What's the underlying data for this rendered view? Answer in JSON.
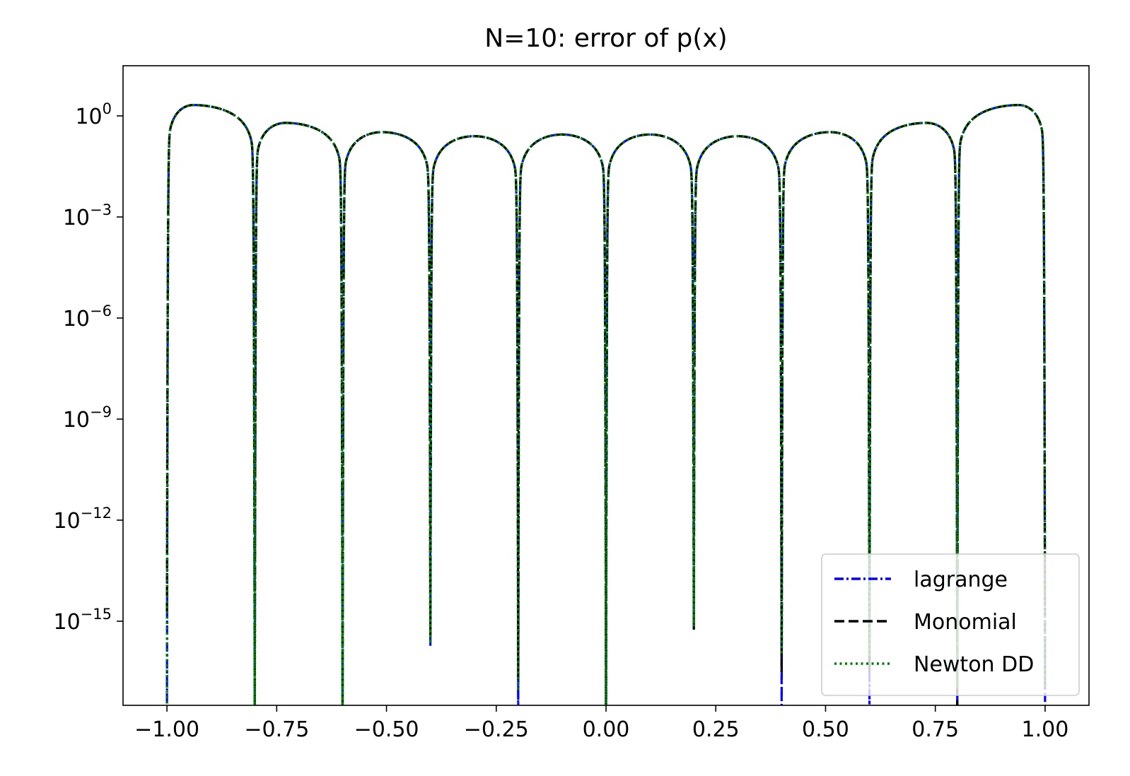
{
  "chart_data": {
    "type": "line",
    "title": "N=10: error of p(x)",
    "xlabel": "",
    "ylabel": "",
    "xlim": [
      -1.1,
      1.1
    ],
    "ylim": [
      1e-18,
      30
    ],
    "yscale": "log",
    "grid": false,
    "legend_position": "bottom-right",
    "x_ticks": [
      -1.0,
      -0.75,
      -0.5,
      -0.25,
      0.0,
      0.25,
      0.5,
      0.75,
      1.0
    ],
    "x_tick_labels": [
      "−1.00",
      "−0.75",
      "−0.50",
      "−0.25",
      "0.00",
      "0.25",
      "0.50",
      "0.75",
      "1.00"
    ],
    "y_ticks": [
      {
        "value": 1,
        "base": "10",
        "exp": "0"
      },
      {
        "value": 0.001,
        "base": "10",
        "exp": "−3"
      },
      {
        "value": 1e-06,
        "base": "10",
        "exp": "−6"
      },
      {
        "value": 1e-09,
        "base": "10",
        "exp": "−9"
      },
      {
        "value": 1e-12,
        "base": "10",
        "exp": "−12"
      },
      {
        "value": 1e-15,
        "base": "10",
        "exp": "−15"
      }
    ],
    "zeros": [
      -1.0,
      -0.8,
      -0.6,
      -0.4,
      -0.2,
      0.0,
      0.2,
      0.4,
      0.6,
      0.8,
      1.0
    ],
    "lobe_peaks": [
      {
        "x": -0.94,
        "y": 2.1
      },
      {
        "x": -0.73,
        "y": 0.62
      },
      {
        "x": -0.51,
        "y": 0.33
      },
      {
        "x": -0.3,
        "y": 0.25
      },
      {
        "x": -0.1,
        "y": 0.28
      },
      {
        "x": 0.1,
        "y": 0.28
      },
      {
        "x": 0.3,
        "y": 0.25
      },
      {
        "x": 0.51,
        "y": 0.33
      },
      {
        "x": 0.73,
        "y": 0.62
      },
      {
        "x": 0.94,
        "y": 2.1
      }
    ],
    "series": [
      {
        "name": "lagrange",
        "color": "#0000ff",
        "style": "dash-dot",
        "dip_min": [
          1e-18,
          1e-18,
          1e-18,
          2e-16,
          1e-18,
          1e-18,
          6e-16,
          1e-18,
          1e-18,
          1e-18,
          1e-18
        ]
      },
      {
        "name": "Monomial",
        "color": "#000000",
        "style": "dashed",
        "dip_min": [
          2e-15,
          1e-18,
          1e-18,
          3e-16,
          2e-17,
          1e-18,
          6e-16,
          3e-17,
          3e-17,
          1e-18,
          1e-17
        ]
      },
      {
        "name": "Newton DD",
        "color": "#008000",
        "style": "dotted",
        "dip_min": [
          1e-18,
          1e-18,
          1e-18,
          2.5e-16,
          1e-17,
          1e-18,
          7e-16,
          1e-16,
          1e-16,
          1e-17,
          1e-17
        ]
      }
    ]
  }
}
